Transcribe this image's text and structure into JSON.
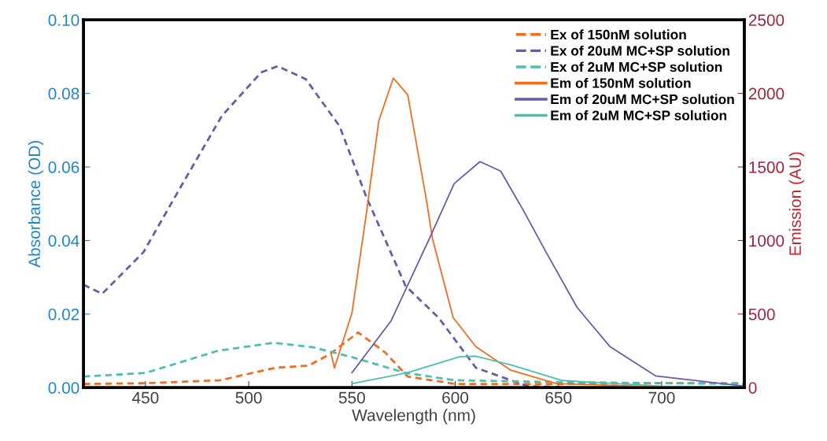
{
  "chart_data": {
    "type": "line",
    "xlabel": "Wavelength (nm)",
    "ylabel": "Absorbance (OD)",
    "y2label": "Emission (AU)",
    "xlim": [
      420,
      740
    ],
    "xticks": [
      450,
      500,
      550,
      600,
      650,
      700
    ],
    "ylim": [
      0,
      0.1
    ],
    "yticks": [
      {
        "value": 0,
        "label": "0.00"
      },
      {
        "value": 0.02,
        "label": "0.02"
      },
      {
        "value": 0.04,
        "label": "0.04"
      },
      {
        "value": 0.06,
        "label": "0.06"
      },
      {
        "value": 0.08,
        "label": "0.08"
      },
      {
        "value": 0.1,
        "label": "0.10"
      }
    ],
    "y2lim": [
      0,
      2500
    ],
    "y2ticks": [
      0,
      500,
      1000,
      1500,
      2000,
      2500
    ],
    "grid": false,
    "legend": "top right",
    "marker": "none",
    "series": [
      {
        "name": "Ex of 150nM solution",
        "color": "#f26b21",
        "line_style": "dashed",
        "x": [
          420,
          450,
          486,
          513,
          529,
          539,
          553,
          566,
          577,
          600,
          650,
          700,
          740
        ],
        "values": [
          0.001,
          0.0012,
          0.002,
          0.0054,
          0.006,
          0.009,
          0.015,
          0.0096,
          0.003,
          0.001,
          0.001,
          0.0012,
          0.0012
        ]
      },
      {
        "name": "Ex of 20uM MC+SP solution",
        "color": "#6a5aaa",
        "line_style": "dashed",
        "x": [
          420,
          429,
          449,
          468,
          487,
          506,
          514,
          527.6,
          544,
          557,
          576,
          592,
          610,
          635,
          660,
          740
        ],
        "values": [
          0.028,
          0.0255,
          0.0368,
          0.0555,
          0.0739,
          0.0857,
          0.0874,
          0.0839,
          0.0711,
          0.0518,
          0.0276,
          0.019,
          0.0054,
          0.0004,
          0,
          0
        ]
      },
      {
        "name": "Ex of 2uM MC+SP solution",
        "color": "#4dbfb0",
        "line_style": "dashed",
        "x": [
          420,
          450,
          485,
          512,
          531,
          550,
          576,
          600,
          650,
          740
        ],
        "values": [
          0.003,
          0.004,
          0.01,
          0.0122,
          0.011,
          0.0083,
          0.004,
          0.002,
          0.0015,
          0.001
        ]
      },
      {
        "name": "Em of 150nM solution",
        "color": "#f26b21",
        "line_style": "solid",
        "axis": "y2",
        "x": [
          540,
          541.5,
          550,
          557,
          563,
          570,
          577,
          586,
          589,
          599,
          610,
          627,
          649,
          700,
          740
        ],
        "values": [
          225,
          134,
          508,
          1188,
          1815,
          2104,
          1991,
          1280,
          1012,
          476,
          278,
          118,
          27,
          5,
          0
        ]
      },
      {
        "name": "Em of 20uM MC+SP solution",
        "color": "#6a5aaa",
        "line_style": "solid",
        "axis": "y2",
        "x": [
          550,
          569,
          588,
          599.5,
          612,
          622,
          633,
          644,
          659,
          675,
          697,
          740
        ],
        "values": [
          102,
          455,
          1028,
          1387,
          1536,
          1472,
          1205,
          921,
          546,
          278,
          80,
          10
        ]
      },
      {
        "name": "Em of 2uM MC+SP solution",
        "color": "#4dbfb0",
        "line_style": "solid",
        "axis": "y2",
        "x": [
          550,
          577,
          602,
          610,
          627,
          652,
          700,
          740
        ],
        "values": [
          27,
          102,
          209,
          214,
          155,
          48,
          10,
          5
        ]
      }
    ]
  }
}
